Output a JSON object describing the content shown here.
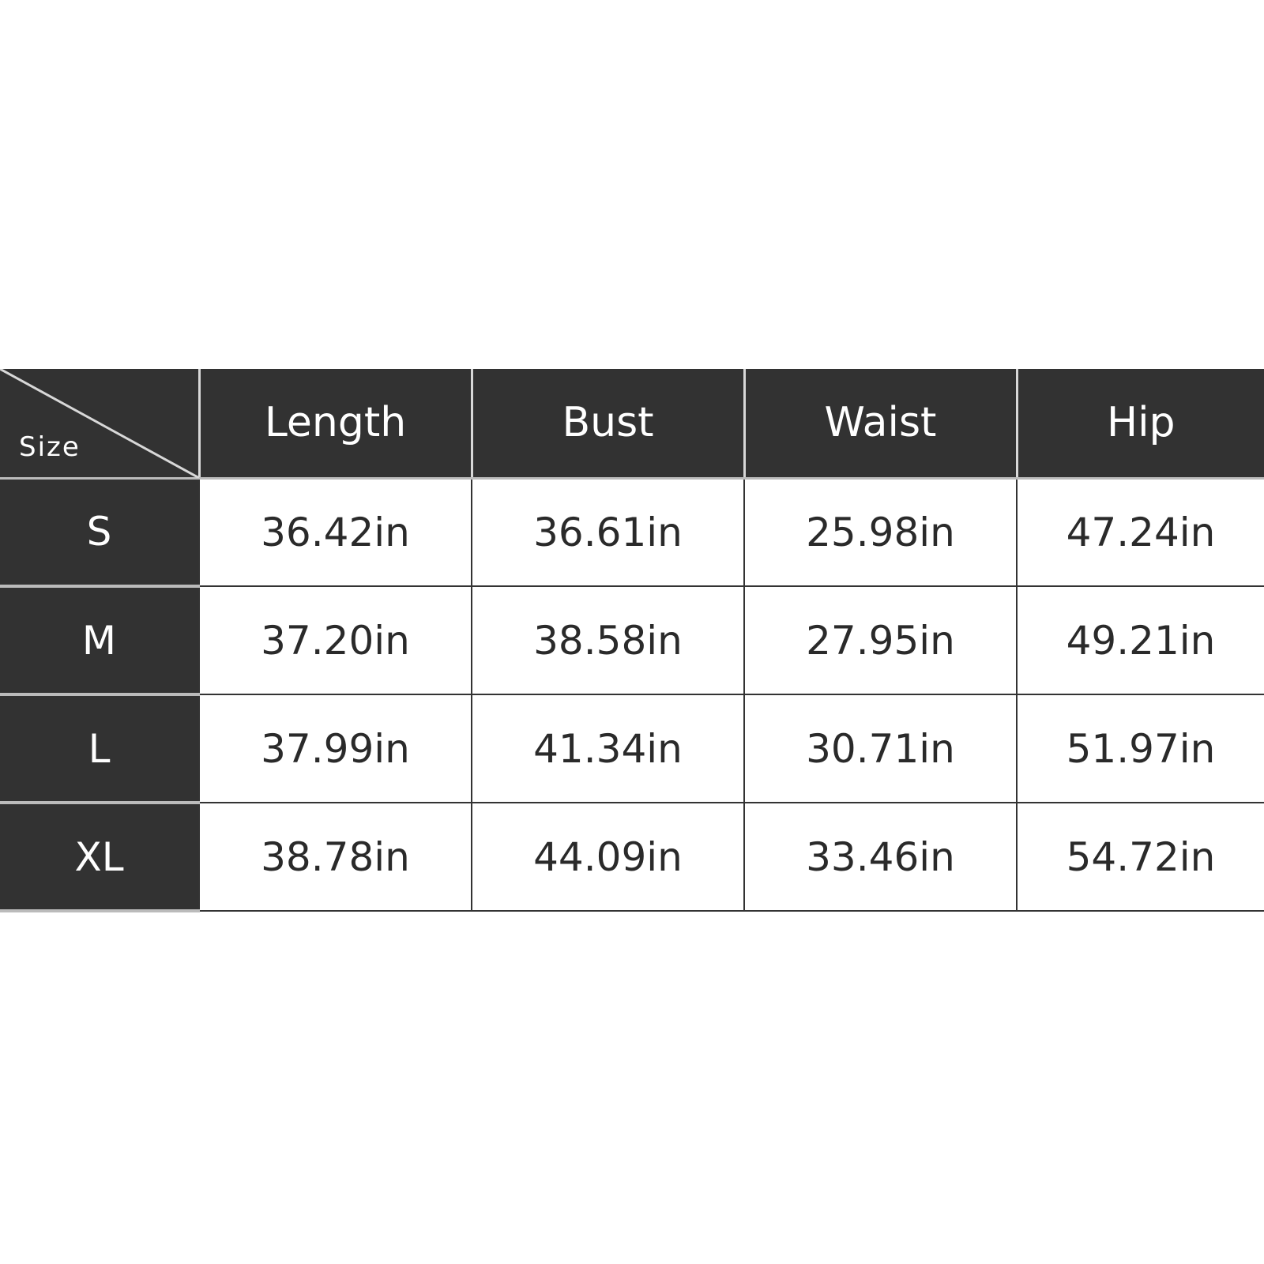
{
  "table": {
    "corner_label": "Size",
    "columns": [
      "Length",
      "Bust",
      "Waist",
      "Hip"
    ],
    "rows": [
      {
        "size": "S",
        "values": [
          "36.42in",
          "36.61in",
          "25.98in",
          "47.24in"
        ]
      },
      {
        "size": "M",
        "values": [
          "37.20in",
          "38.58in",
          "27.95in",
          "49.21in"
        ]
      },
      {
        "size": "L",
        "values": [
          "37.99in",
          "41.34in",
          "30.71in",
          "51.97in"
        ]
      },
      {
        "size": "XL",
        "values": [
          "38.78in",
          "44.09in",
          "33.46in",
          "54.72in"
        ]
      }
    ]
  },
  "colors": {
    "header_bg": "#323232",
    "header_text": "#ffffff",
    "cell_bg": "#ffffff",
    "cell_text": "#2a2a2a"
  }
}
